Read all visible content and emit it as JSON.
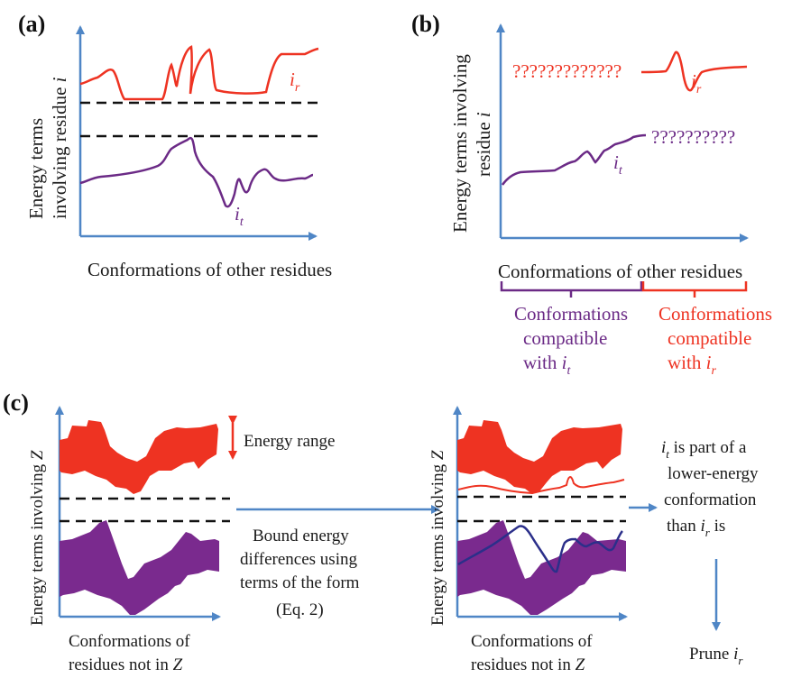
{
  "colors": {
    "axis": "#4f86c6",
    "red": "#ee3322",
    "purple": "#6b2a86",
    "navy": "#2b2f8a",
    "dash": "#111111",
    "text": "#1a1a1a"
  },
  "panel_a": {
    "letter": "(a)",
    "y_label_line1": "Energy terms",
    "y_label_line2": "involving residue",
    "y_label_var": "i",
    "x_label": "Conformations of other residues",
    "red_label_base": "i",
    "red_label_sub": "r",
    "purple_label_base": "i",
    "purple_label_sub": "t"
  },
  "panel_b": {
    "letter": "(b)",
    "y_label_line1": "Energy terms involving",
    "y_label_line2": "residue",
    "y_label_var": "i",
    "x_label": "Conformations of other residues",
    "red_unknown": "?????????????",
    "purple_unknown": "??????????",
    "red_label_base": "i",
    "red_label_sub": "r",
    "purple_label_base": "i",
    "purple_label_sub": "t",
    "bracket_purple_lines": [
      "Conformations",
      "compatible",
      "with"
    ],
    "bracket_purple_var_base": "i",
    "bracket_purple_var_sub": "t",
    "bracket_red_lines": [
      "Conformations",
      "compatible",
      "with"
    ],
    "bracket_red_var_base": "i",
    "bracket_red_var_sub": "r"
  },
  "panel_c": {
    "letter": "(c)",
    "y_label": "Energy terms involving",
    "y_label_var": "Z",
    "energy_range": "Energy range",
    "x_label_line1": "Conformations of",
    "x_label_line2": "residues not in",
    "x_label_var": "Z",
    "middle_text": [
      "Bound energy",
      "differences using",
      "terms of the form",
      "(Eq. 2)"
    ],
    "conclusion_line1_base": "i",
    "conclusion_line1_sub": "t",
    "conclusion_line1_rest": " is part of a",
    "conclusion_line2": "lower-energy",
    "conclusion_line3": "conformation",
    "conclusion_line4_pre": "than ",
    "conclusion_line4_base": "i",
    "conclusion_line4_sub": "r",
    "conclusion_line4_rest": " is",
    "prune_word": "Prune ",
    "prune_base": "i",
    "prune_sub": "r"
  }
}
